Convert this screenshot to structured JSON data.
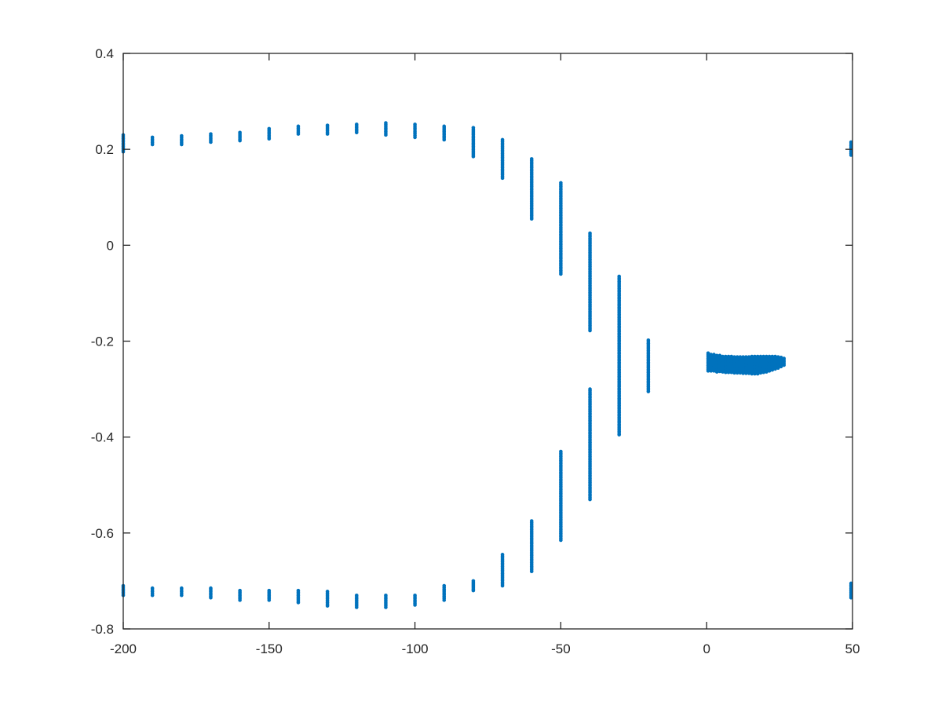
{
  "chart_data": {
    "type": "scatter",
    "title": "",
    "xlabel": "",
    "ylabel": "",
    "xlim": [
      -200,
      50
    ],
    "ylim": [
      -0.8,
      0.4
    ],
    "grid": false,
    "box": true,
    "marker_color": "#0072BD",
    "axis_color": "#262626",
    "x_ticks": [
      -200,
      -150,
      -100,
      -50,
      0,
      50
    ],
    "x_tick_labels": [
      "-200",
      "-150",
      "-100",
      "-50",
      "0",
      "50"
    ],
    "y_ticks": [
      0.4,
      0.2,
      0,
      -0.2,
      -0.4,
      -0.6,
      -0.8
    ],
    "y_tick_labels": [
      "0.4",
      "0.2",
      "0",
      "-0.2",
      "-0.4",
      "-0.6",
      "-0.8"
    ],
    "clusters": [
      {
        "x": -200,
        "y_ranges": [
          [
            0.195,
            0.23
          ],
          [
            -0.73,
            -0.71
          ]
        ]
      },
      {
        "x": -190,
        "y_ranges": [
          [
            0.21,
            0.225
          ],
          [
            -0.73,
            -0.715
          ]
        ]
      },
      {
        "x": -180,
        "y_ranges": [
          [
            0.21,
            0.228
          ],
          [
            -0.73,
            -0.715
          ]
        ]
      },
      {
        "x": -170,
        "y_ranges": [
          [
            0.215,
            0.232
          ],
          [
            -0.735,
            -0.715
          ]
        ]
      },
      {
        "x": -160,
        "y_ranges": [
          [
            0.218,
            0.235
          ],
          [
            -0.74,
            -0.72
          ]
        ]
      },
      {
        "x": -150,
        "y_ranges": [
          [
            0.222,
            0.243
          ],
          [
            -0.74,
            -0.72
          ]
        ]
      },
      {
        "x": -140,
        "y_ranges": [
          [
            0.232,
            0.248
          ],
          [
            -0.745,
            -0.72
          ]
        ]
      },
      {
        "x": -130,
        "y_ranges": [
          [
            0.232,
            0.25
          ],
          [
            -0.752,
            -0.722
          ]
        ]
      },
      {
        "x": -120,
        "y_ranges": [
          [
            0.235,
            0.252
          ],
          [
            -0.755,
            -0.73
          ]
        ]
      },
      {
        "x": -110,
        "y_ranges": [
          [
            0.23,
            0.255
          ],
          [
            -0.755,
            -0.73
          ]
        ]
      },
      {
        "x": -100,
        "y_ranges": [
          [
            0.225,
            0.252
          ],
          [
            -0.75,
            -0.73
          ]
        ]
      },
      {
        "x": -90,
        "y_ranges": [
          [
            0.22,
            0.248
          ],
          [
            -0.74,
            -0.71
          ]
        ]
      },
      {
        "x": -80,
        "y_ranges": [
          [
            0.185,
            0.245
          ],
          [
            -0.72,
            -0.7
          ]
        ]
      },
      {
        "x": -70,
        "y_ranges": [
          [
            0.14,
            0.22
          ],
          [
            -0.71,
            -0.645
          ]
        ]
      },
      {
        "x": -60,
        "y_ranges": [
          [
            0.055,
            0.18
          ],
          [
            -0.68,
            -0.575
          ]
        ]
      },
      {
        "x": -50,
        "y_ranges": [
          [
            -0.06,
            0.13
          ],
          [
            -0.615,
            -0.43
          ]
        ]
      },
      {
        "x": -40,
        "y_ranges": [
          [
            -0.178,
            0.025
          ],
          [
            -0.53,
            -0.3
          ]
        ]
      },
      {
        "x": -30,
        "y_ranges": [
          [
            -0.395,
            -0.065
          ]
        ]
      },
      {
        "x": -20,
        "y_ranges": [
          [
            -0.305,
            -0.198
          ]
        ]
      },
      {
        "x": 0.5,
        "y_ranges": [
          [
            -0.262,
            -0.225
          ]
        ]
      },
      {
        "x": 1.5,
        "y_ranges": [
          [
            -0.262,
            -0.228
          ]
        ]
      },
      {
        "x": 2.5,
        "y_ranges": [
          [
            -0.262,
            -0.228
          ]
        ]
      },
      {
        "x": 3.5,
        "y_ranges": [
          [
            -0.264,
            -0.23
          ]
        ]
      },
      {
        "x": 4.5,
        "y_ranges": [
          [
            -0.263,
            -0.23
          ]
        ]
      },
      {
        "x": 5.5,
        "y_ranges": [
          [
            -0.264,
            -0.232
          ]
        ]
      },
      {
        "x": 6.5,
        "y_ranges": [
          [
            -0.265,
            -0.232
          ]
        ]
      },
      {
        "x": 7.5,
        "y_ranges": [
          [
            -0.265,
            -0.232
          ]
        ]
      },
      {
        "x": 8.5,
        "y_ranges": [
          [
            -0.265,
            -0.232
          ]
        ]
      },
      {
        "x": 9.5,
        "y_ranges": [
          [
            -0.266,
            -0.233
          ]
        ]
      },
      {
        "x": 10.5,
        "y_ranges": [
          [
            -0.266,
            -0.233
          ]
        ]
      },
      {
        "x": 11.5,
        "y_ranges": [
          [
            -0.266,
            -0.233
          ]
        ]
      },
      {
        "x": 12.5,
        "y_ranges": [
          [
            -0.267,
            -0.233
          ]
        ]
      },
      {
        "x": 13.5,
        "y_ranges": [
          [
            -0.267,
            -0.233
          ]
        ]
      },
      {
        "x": 14.5,
        "y_ranges": [
          [
            -0.267,
            -0.233
          ]
        ]
      },
      {
        "x": 15.5,
        "y_ranges": [
          [
            -0.268,
            -0.232
          ]
        ]
      },
      {
        "x": 16.5,
        "y_ranges": [
          [
            -0.268,
            -0.232
          ]
        ]
      },
      {
        "x": 17.5,
        "y_ranges": [
          [
            -0.268,
            -0.232
          ]
        ]
      },
      {
        "x": 18.5,
        "y_ranges": [
          [
            -0.266,
            -0.232
          ]
        ]
      },
      {
        "x": 19.5,
        "y_ranges": [
          [
            -0.265,
            -0.232
          ]
        ]
      },
      {
        "x": 20.5,
        "y_ranges": [
          [
            -0.264,
            -0.232
          ]
        ]
      },
      {
        "x": 21.5,
        "y_ranges": [
          [
            -0.262,
            -0.232
          ]
        ]
      },
      {
        "x": 22.5,
        "y_ranges": [
          [
            -0.26,
            -0.232
          ]
        ]
      },
      {
        "x": 23.5,
        "y_ranges": [
          [
            -0.258,
            -0.232
          ]
        ]
      },
      {
        "x": 24.5,
        "y_ranges": [
          [
            -0.256,
            -0.233
          ]
        ]
      },
      {
        "x": 25.5,
        "y_ranges": [
          [
            -0.253,
            -0.234
          ]
        ]
      },
      {
        "x": 26.5,
        "y_ranges": [
          [
            -0.25,
            -0.236
          ]
        ]
      },
      {
        "x": 49.5,
        "y_ranges": [
          [
            0.188,
            0.215
          ],
          [
            -0.735,
            -0.705
          ]
        ]
      }
    ]
  }
}
